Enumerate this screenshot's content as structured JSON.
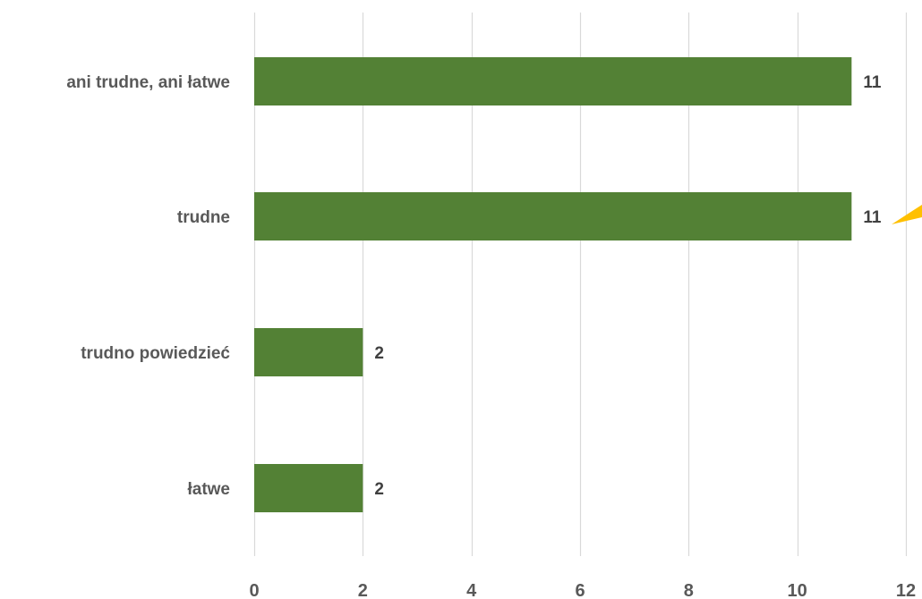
{
  "chart_data": {
    "type": "bar",
    "orientation": "horizontal",
    "categories": [
      "ani trudne, ani łatwe",
      "trudne",
      "trudno powiedzieć",
      "łatwe"
    ],
    "values": [
      11,
      11,
      2,
      2
    ],
    "data_labels": [
      "11",
      "11",
      "2",
      "2"
    ],
    "xlim": [
      0,
      12
    ],
    "x_ticks": [
      "0",
      "2",
      "4",
      "6",
      "8",
      "10",
      "12"
    ],
    "grid": "vertical",
    "legend": "none",
    "title": "",
    "xlabel": "",
    "ylabel": ""
  },
  "colors": {
    "bar": "#538135",
    "gridline": "#d9d9d9",
    "category_text": "#595959",
    "tick_text": "#595959",
    "data_label_text": "#404040",
    "callout_accent": "#ffc000"
  }
}
